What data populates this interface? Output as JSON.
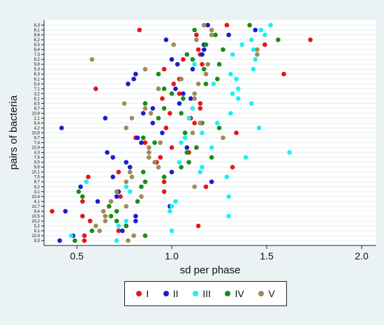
{
  "chart_data": {
    "type": "scatter",
    "xlabel": "sd per phase",
    "ylabel": "pairs of bacteria",
    "xlim": [
      0.35,
      2.0
    ],
    "xticks": [
      "0.5",
      "1.0",
      "1.5",
      "2.0"
    ],
    "xtick_values": [
      0.5,
      1.0,
      1.5,
      2.0
    ],
    "grid": "horizontal",
    "legend_placement": "bottom-center",
    "categories": [
      "8,3",
      "8,1",
      "8,6",
      "6,2",
      "6,5",
      "8,4",
      "7,3",
      "8,2",
      "9,8",
      "5,3",
      "6,3",
      "6,1",
      "5,4",
      "7,1",
      "3,2",
      "6,1",
      "8,5",
      "9,7",
      "10,8",
      "2,1",
      "6,4",
      "4,2",
      "10,6",
      "9,7",
      "7,4",
      "10,9",
      "4,3",
      "7,6",
      "9,5",
      "9,6",
      "10,1",
      "7,5",
      "8,7",
      "9,2",
      "3,1",
      "10,4",
      "4,1",
      "10,7",
      "9,4",
      "10,5",
      "10,2",
      "5,2",
      "9,1",
      "10,9",
      "9,3"
    ],
    "series": [
      {
        "name": "I",
        "color": "#e8141c",
        "values": [
          1.29,
          0.83,
          1.13,
          1.73,
          1.49,
          1.14,
          1.15,
          1.06,
          1.16,
          0.96,
          1.59,
          1.04,
          1.01,
          0.6,
          1.04,
          0.95,
          1.15,
          1.15,
          0.99,
          1.1,
          1.12,
          0.97,
          1.34,
          0.81,
          0.86,
          1.0,
          1.09,
          0.94,
          0.92,
          1.32,
          0.72,
          0.56,
          0.96,
          1.18,
          0.96,
          0.73,
          0.53,
          0.67,
          0.37,
          0.53,
          0.57,
          1.14,
          0.72,
          0.54,
          0.54
        ]
      },
      {
        "name": "II",
        "color": "#1c1ccf",
        "values": [
          1.19,
          1.44,
          1.3,
          0.97,
          1.17,
          1.17,
          1.16,
          1.0,
          1.03,
          1.11,
          0.81,
          0.8,
          0.77,
          1.02,
          1.06,
          1.1,
          1.04,
          0.9,
          0.85,
          0.65,
          0.9,
          0.42,
          0.95,
          0.82,
          0.84,
          1.08,
          0.66,
          0.69,
          0.76,
          0.78,
          1.0,
          0.69,
          1.21,
          0.52,
          0.72,
          0.71,
          0.61,
          0.99,
          0.44,
          0.81,
          0.81,
          0.76,
          0.74,
          0.48,
          0.41
        ]
      },
      {
        "name": "III",
        "color": "#1cf0f0",
        "values": [
          1.52,
          1.47,
          1.49,
          1.42,
          1.37,
          1.43,
          1.32,
          1.44,
          1.12,
          1.43,
          1.31,
          1.34,
          1.22,
          1.35,
          1.32,
          1.35,
          1.42,
          1.11,
          1.31,
          1.09,
          1.24,
          1.46,
          1.16,
          1.07,
          1.05,
          1.21,
          1.62,
          1.39,
          1.04,
          1.16,
          1.15,
          1.29,
          0.55,
          0.76,
          0.78,
          1.3,
          1.02,
          1.0,
          0.99,
          1.3,
          0.76,
          0.72,
          1.0,
          0.47,
          0.71
        ]
      },
      {
        "name": "IV",
        "color": "#168f16",
        "values": [
          1.41,
          1.12,
          1.23,
          1.56,
          1.18,
          1.27,
          1.08,
          1.11,
          1.25,
          1.17,
          0.93,
          1.24,
          1.18,
          0.96,
          1.0,
          1.06,
          0.86,
          0.96,
          1.05,
          0.93,
          1.16,
          1.25,
          1.07,
          0.85,
          0.91,
          1.13,
          1.08,
          1.21,
          1.09,
          1.05,
          0.85,
          0.96,
          0.86,
          0.84,
          0.51,
          0.53,
          0.82,
          0.67,
          0.71,
          0.68,
          0.71,
          0.76,
          0.58,
          0.86,
          0.49
        ]
      },
      {
        "name": "V",
        "color": "#a08a5a",
        "values": [
          1.17,
          1.21,
          1.21,
          1.13,
          1.01,
          1.45,
          1.45,
          0.58,
          1.19,
          0.86,
          1.18,
          1.05,
          1.14,
          0.93,
          1.12,
          1.12,
          0.75,
          0.86,
          0.89,
          0.79,
          1.15,
          0.76,
          1.11,
          1.27,
          0.94,
          0.88,
          0.88,
          0.88,
          0.91,
          0.93,
          0.78,
          0.79,
          0.76,
          1.12,
          0.71,
          0.84,
          0.68,
          0.76,
          0.64,
          0.65,
          0.65,
          0.6,
          0.62,
          0.8,
          0.77
        ]
      }
    ]
  }
}
